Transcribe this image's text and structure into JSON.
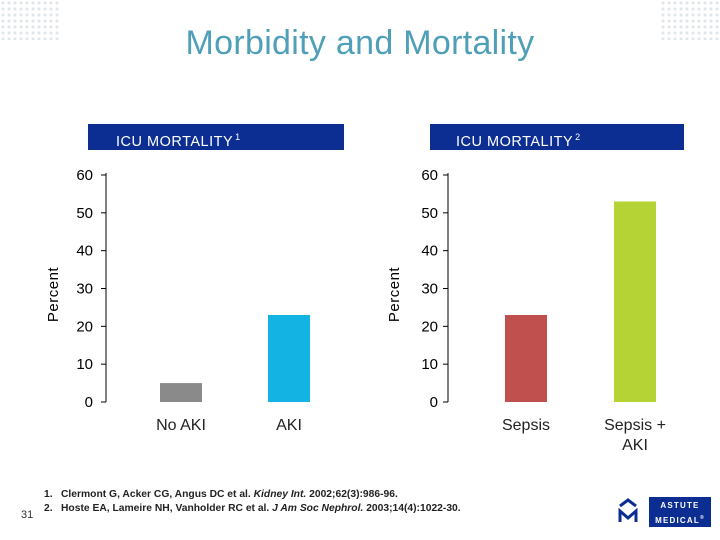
{
  "page": {
    "title": "Morbidity and Mortality",
    "slide_number": "31"
  },
  "chart_data": [
    {
      "type": "bar",
      "header": "ICU MORTALITY",
      "header_superscript": "1",
      "ylabel": "Percent",
      "ylim": [
        0,
        60
      ],
      "yticks": [
        0,
        10,
        20,
        30,
        40,
        50,
        60
      ],
      "categories": [
        "No AKI",
        "AKI"
      ],
      "values": [
        5,
        23
      ],
      "colors": [
        "#8a8a8a",
        "#13b4e3"
      ]
    },
    {
      "type": "bar",
      "header": "ICU MORTALITY",
      "header_superscript": "2",
      "ylabel": "Percent",
      "ylim": [
        0,
        60
      ],
      "yticks": [
        0,
        10,
        20,
        30,
        40,
        50,
        60
      ],
      "categories": [
        "Sepsis",
        "Sepsis +\nAKI"
      ],
      "values": [
        23,
        53
      ],
      "colors": [
        "#c0504d",
        "#b5d334"
      ]
    }
  ],
  "references": [
    {
      "num": "1.",
      "authors": "Clermont G, Acker CG, Angus DC et al. ",
      "journal": "Kidney Int.",
      "rest": " 2002;62(3):986-96."
    },
    {
      "num": "2.",
      "authors": "Hoste EA, Lameire NH, Vanholder RC et al. ",
      "journal": "J Am Soc Nephrol.",
      "rest": " 2003;14(4):1022-30."
    }
  ],
  "logo": {
    "line1": "ASTUTE",
    "line2": "MEDICAL",
    "registered": "®",
    "icon": "astute-m-logo-icon"
  }
}
